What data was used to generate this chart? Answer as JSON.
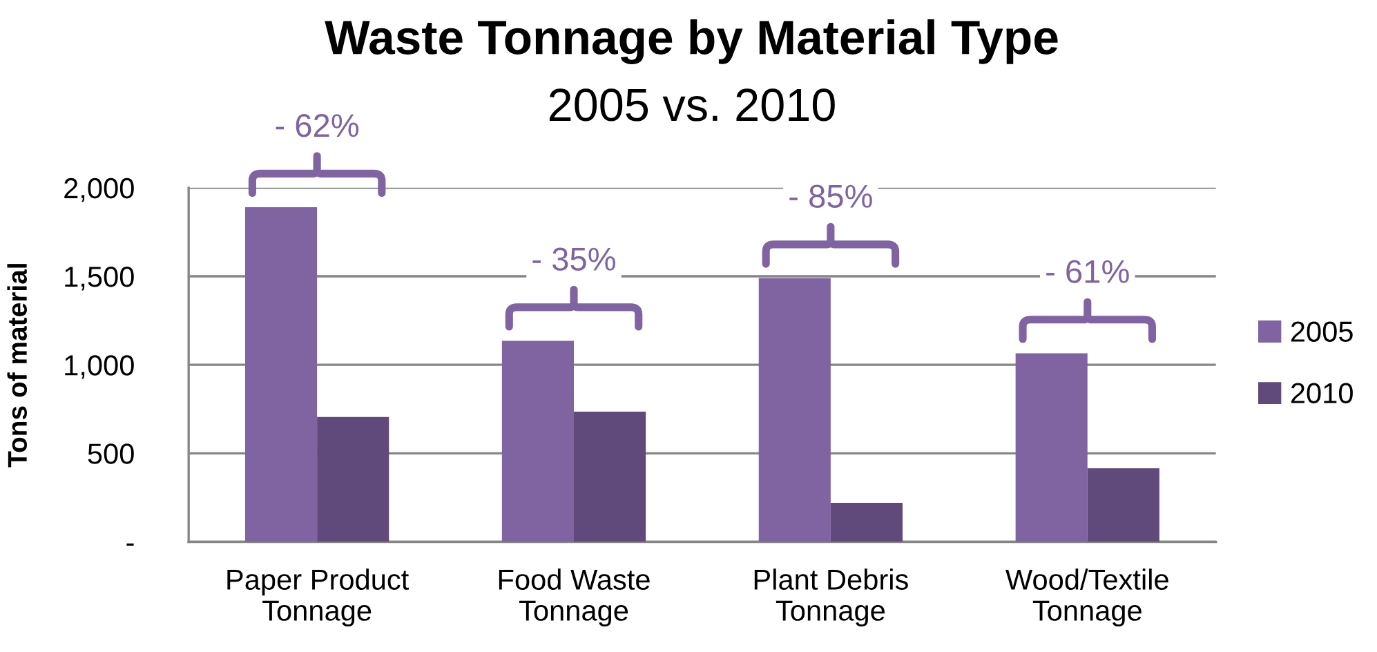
{
  "chart_data": {
    "type": "bar",
    "title": "Waste Tonnage by Material Type",
    "subtitle": "2005 vs. 2010",
    "ylabel": "Tons of material",
    "categories": [
      "Paper Product Tonnage",
      "Food Waste Tonnage",
      "Plant Debris Tonnage",
      "Wood/Textile Tonnage"
    ],
    "series": [
      {
        "name": "2005",
        "color": "#8064a2",
        "values": [
          1890,
          1135,
          1490,
          1065
        ]
      },
      {
        "name": "2010",
        "color": "#604a7b",
        "values": [
          705,
          735,
          220,
          415
        ]
      }
    ],
    "ylim": [
      0,
      2000
    ],
    "yticks": [
      {
        "value": 0,
        "label": "-"
      },
      500,
      {
        "value": 1000,
        "label": "1,000"
      },
      {
        "value": 1500,
        "label": "1,500"
      },
      {
        "value": 2000,
        "label": "2,000"
      }
    ],
    "grid": "y",
    "legend": "right",
    "annotations": [
      "- 62%",
      "- 35%",
      "- 85%",
      "- 61%"
    ]
  }
}
